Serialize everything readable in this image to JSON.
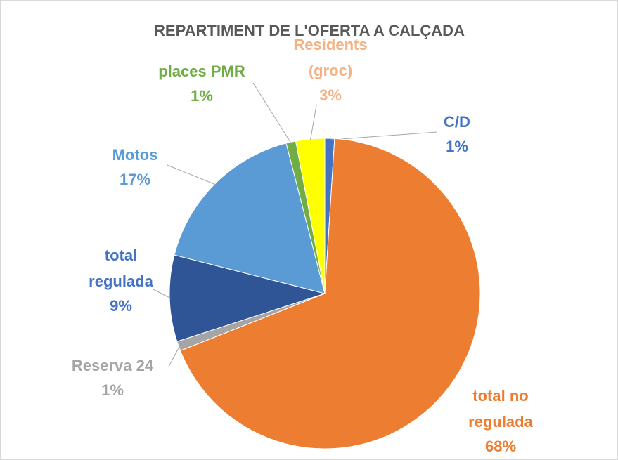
{
  "chart_data": {
    "type": "pie",
    "title": "REPARTIMENT DE L'OFERTA A CALÇADA",
    "categories": [
      "C/D",
      "total no regulada",
      "Reserva 24 h",
      "total regulada",
      "Motos",
      "places PMR",
      "Residents (groc)"
    ],
    "values": [
      1,
      68,
      1,
      9,
      17,
      1,
      3
    ],
    "value_labels": [
      "1%",
      "68%",
      "1%",
      "9%",
      "17%",
      "1%",
      "3%"
    ],
    "colors": [
      "#4472c4",
      "#ed7d31",
      "#a5a5a5",
      "#2f5597",
      "#5b9bd5",
      "#70ad47",
      "#ffff00"
    ],
    "label_colors": [
      "#4472c4",
      "#ed7d31",
      "#a5a5a5",
      "#4472c4",
      "#5b9bd5",
      "#70ad47",
      "#f4b183"
    ]
  }
}
